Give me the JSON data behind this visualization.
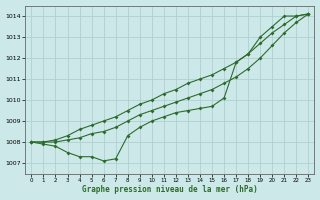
{
  "title": "Graphe pression niveau de la mer (hPa)",
  "background_color": "#cce8e8",
  "grid_color": "#b0d0d0",
  "line_color": "#2d6b2d",
  "xlim": [
    -0.5,
    23.5
  ],
  "ylim": [
    1006.5,
    1014.5
  ],
  "yticks": [
    1007,
    1008,
    1009,
    1010,
    1011,
    1012,
    1013,
    1014
  ],
  "xticks": [
    0,
    1,
    2,
    3,
    4,
    5,
    6,
    7,
    8,
    9,
    10,
    11,
    12,
    13,
    14,
    15,
    16,
    17,
    18,
    19,
    20,
    21,
    22,
    23
  ],
  "line1_x": [
    0,
    1,
    2,
    3,
    4,
    5,
    6,
    7,
    8,
    9,
    10,
    11,
    12,
    13,
    14,
    15,
    16,
    17,
    18,
    19,
    20,
    21,
    22,
    23
  ],
  "line1_y": [
    1008.0,
    1007.9,
    1007.8,
    1007.5,
    1007.3,
    1007.3,
    1007.1,
    1007.2,
    1008.3,
    1008.7,
    1009.0,
    1009.2,
    1009.4,
    1009.5,
    1009.6,
    1009.7,
    1010.1,
    1011.8,
    1012.2,
    1013.0,
    1013.5,
    1014.0,
    1014.0,
    1014.1
  ],
  "line2_x": [
    0,
    1,
    2,
    3,
    4,
    5,
    6,
    7,
    8,
    9,
    10,
    11,
    12,
    13,
    14,
    15,
    16,
    17,
    18,
    19,
    20,
    21,
    22,
    23
  ],
  "line2_y": [
    1008.0,
    1008.0,
    1008.1,
    1008.3,
    1008.6,
    1008.8,
    1009.0,
    1009.2,
    1009.5,
    1009.8,
    1010.0,
    1010.3,
    1010.5,
    1010.8,
    1011.0,
    1011.2,
    1011.5,
    1011.8,
    1012.2,
    1012.7,
    1013.2,
    1013.6,
    1014.0,
    1014.1
  ],
  "line3_x": [
    0,
    1,
    2,
    3,
    4,
    5,
    6,
    7,
    8,
    9,
    10,
    11,
    12,
    13,
    14,
    15,
    16,
    17,
    18,
    19,
    20,
    21,
    22,
    23
  ],
  "line3_y": [
    1008.0,
    1008.0,
    1008.0,
    1008.1,
    1008.2,
    1008.4,
    1008.5,
    1008.7,
    1009.0,
    1009.3,
    1009.5,
    1009.7,
    1009.9,
    1010.1,
    1010.3,
    1010.5,
    1010.8,
    1011.1,
    1011.5,
    1012.0,
    1012.6,
    1013.2,
    1013.7,
    1014.1
  ]
}
